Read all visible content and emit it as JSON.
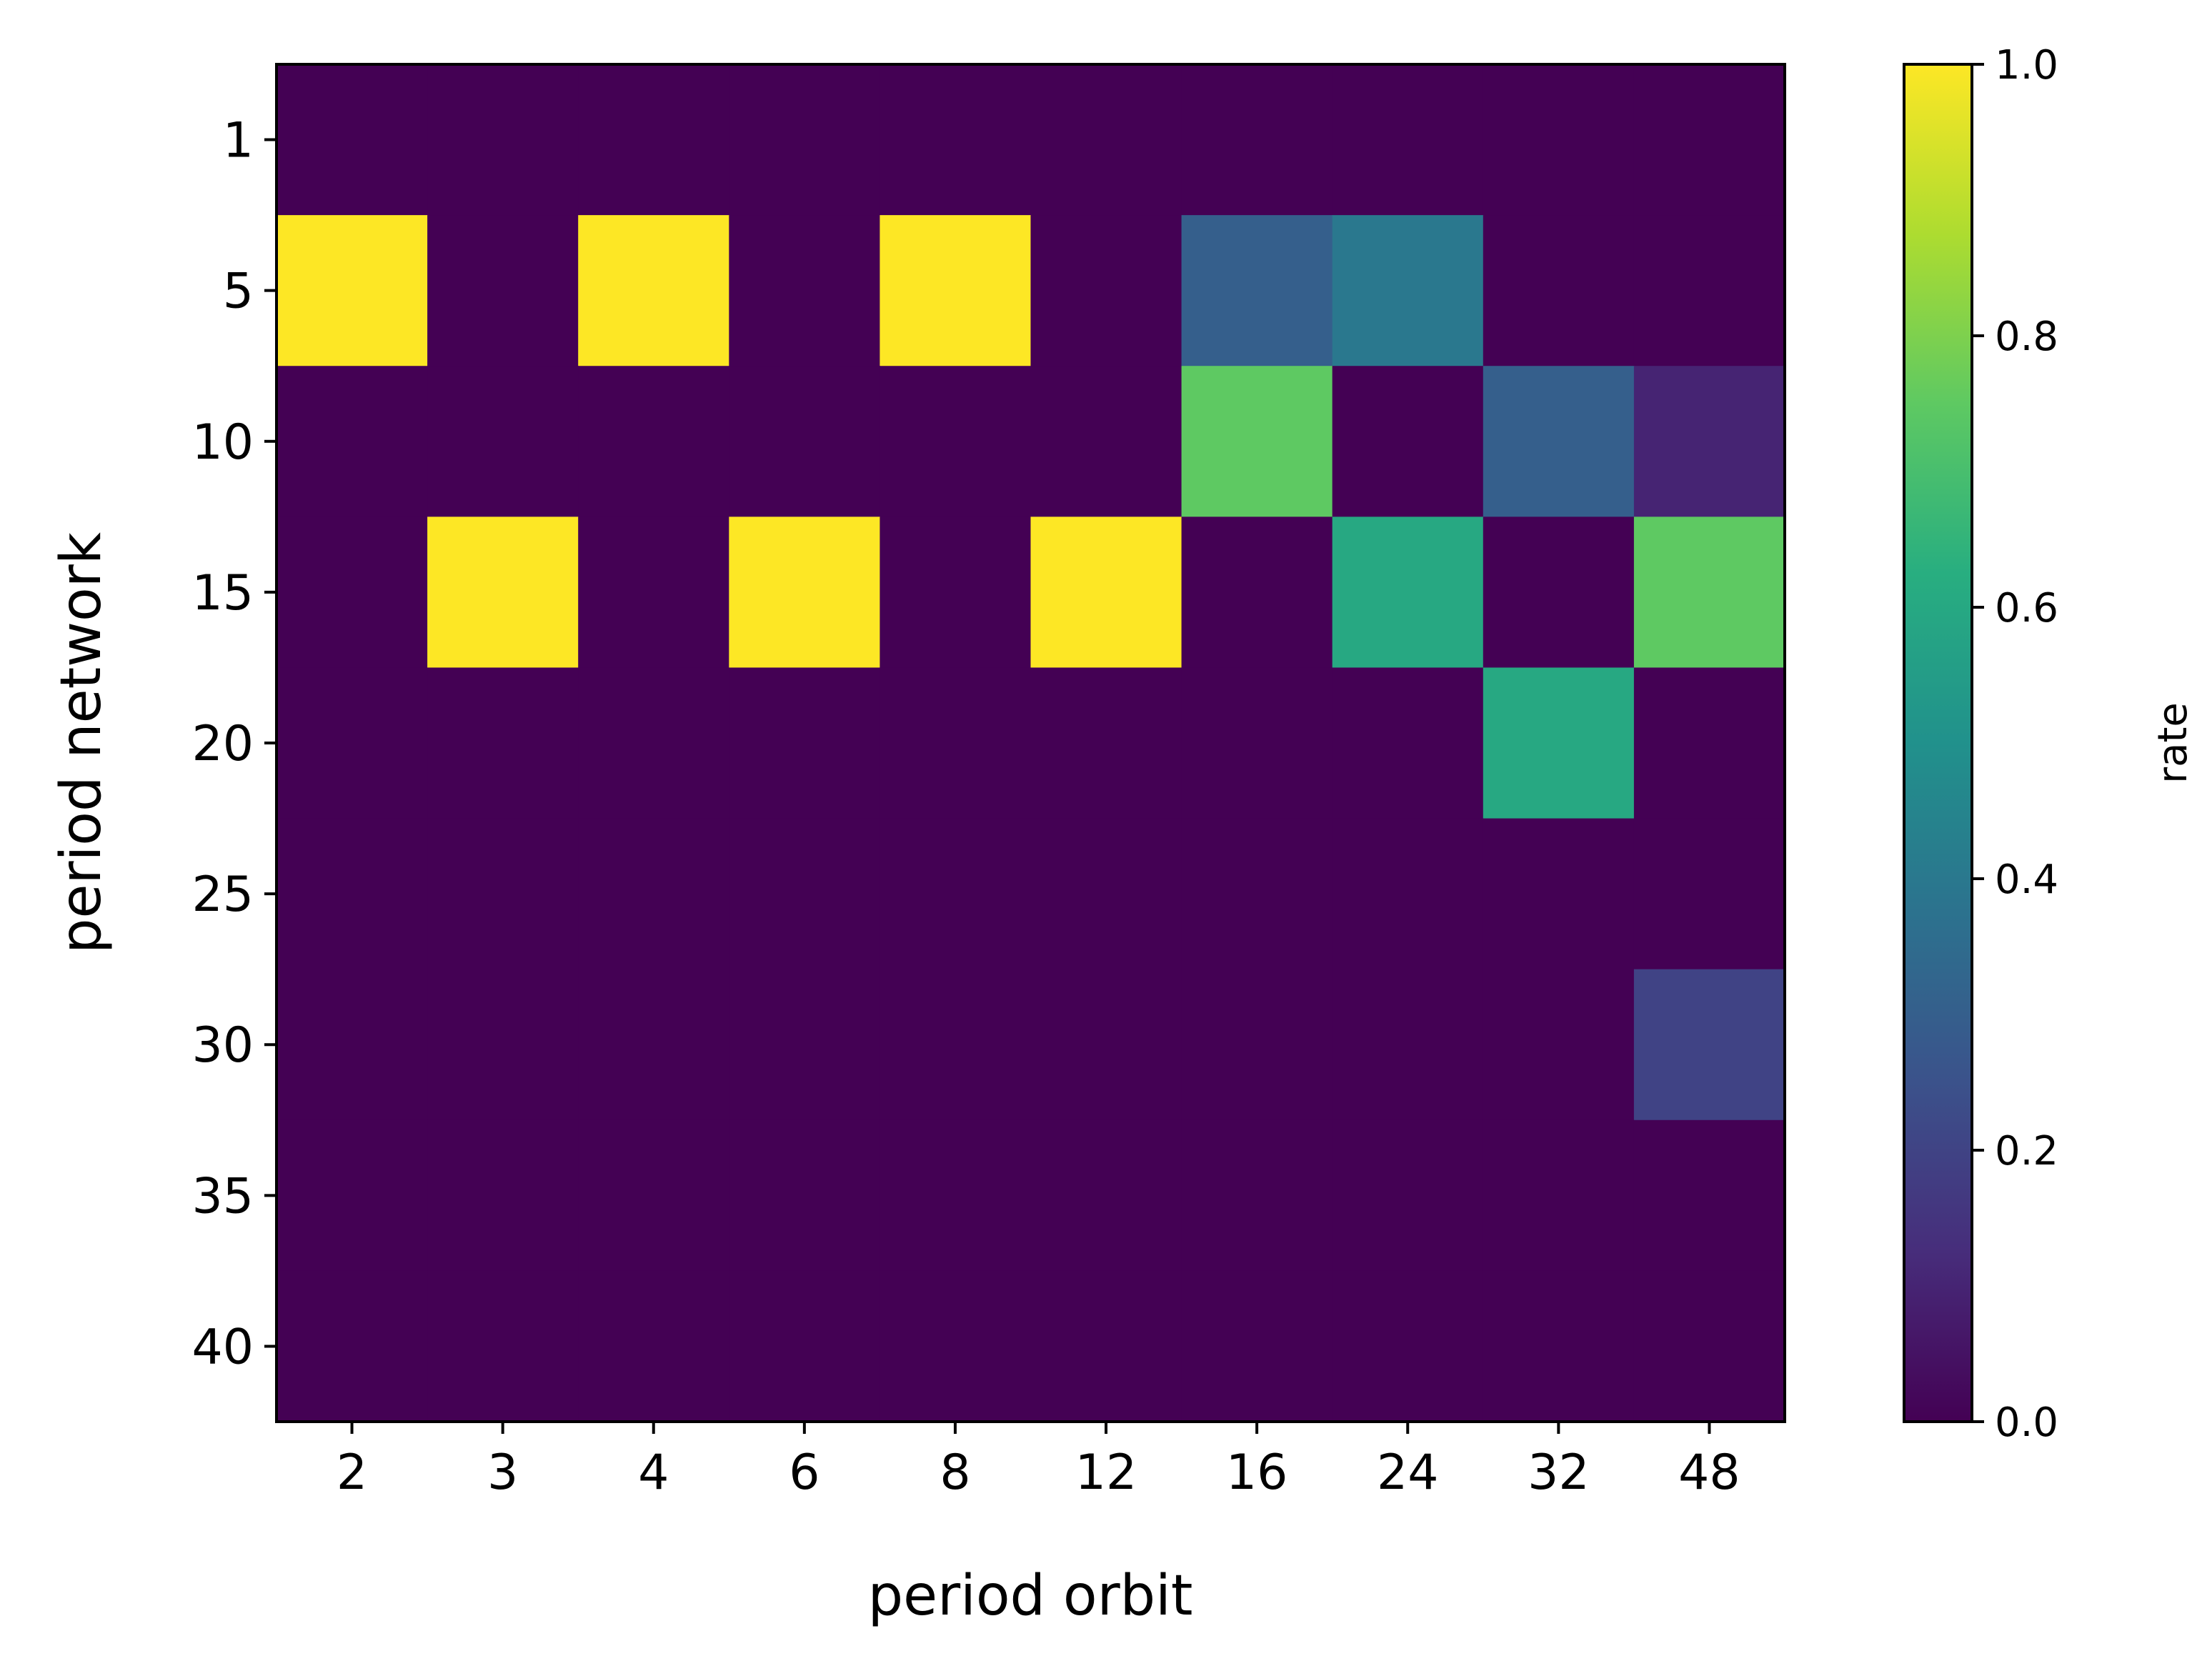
{
  "chart_data": {
    "type": "heatmap",
    "xlabel": "period orbit",
    "ylabel": "period network",
    "x_categories": [
      "2",
      "3",
      "4",
      "6",
      "8",
      "12",
      "16",
      "24",
      "32",
      "48"
    ],
    "y_categories": [
      "1",
      "5",
      "10",
      "15",
      "20",
      "25",
      "30",
      "35",
      "40"
    ],
    "values": [
      [
        0,
        0,
        0,
        0,
        0,
        0,
        0,
        0,
        0,
        0
      ],
      [
        1,
        0,
        1,
        0,
        1,
        0,
        0.3,
        0.4,
        0,
        0
      ],
      [
        0,
        0,
        0,
        0,
        0,
        0,
        0.75,
        0,
        0.3,
        0.1
      ],
      [
        0,
        1,
        0,
        1,
        0,
        1,
        0,
        0.6,
        0,
        0.75
      ],
      [
        0,
        0,
        0,
        0,
        0,
        0,
        0,
        0,
        0.6,
        0
      ],
      [
        0,
        0,
        0,
        0,
        0,
        0,
        0,
        0,
        0,
        0
      ],
      [
        0,
        0,
        0,
        0,
        0,
        0,
        0,
        0,
        0,
        0.2
      ],
      [
        0,
        0,
        0,
        0,
        0,
        0,
        0,
        0,
        0,
        0
      ],
      [
        0,
        0,
        0,
        0,
        0,
        0,
        0,
        0,
        0,
        0
      ]
    ],
    "colormap": "viridis",
    "colorbar": {
      "label": "rate",
      "range": [
        0,
        1
      ],
      "ticks": [
        "0.0",
        "0.2",
        "0.4",
        "0.6",
        "0.8",
        "1.0"
      ]
    }
  }
}
